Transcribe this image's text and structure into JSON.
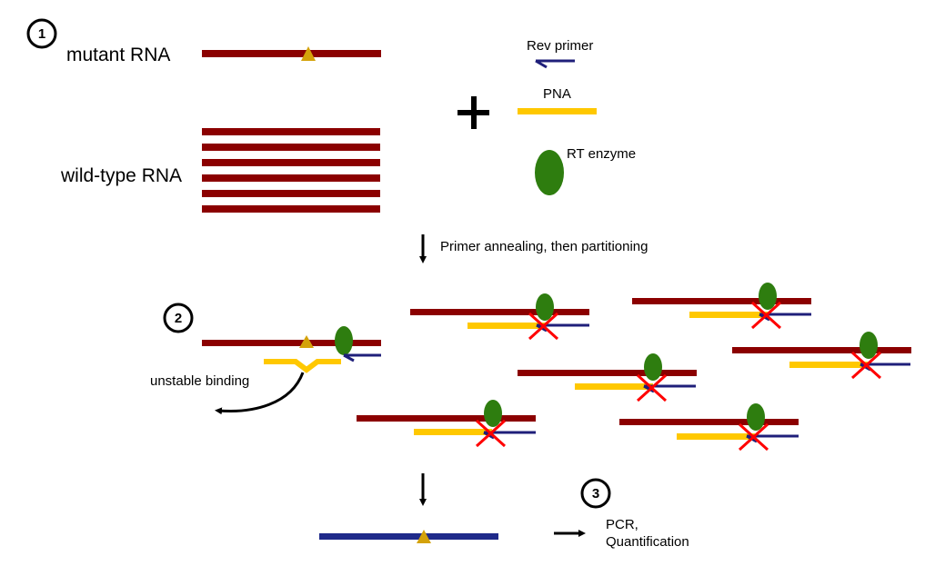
{
  "steps": {
    "s1": "1",
    "s2": "2",
    "s3": "3"
  },
  "labels": {
    "mutant_rna": "mutant RNA",
    "wild_type_rna": "wild-type RNA",
    "rev_primer": "Rev primer",
    "pna": "PNA",
    "rt_enzyme": "RT enzyme",
    "plus": "+",
    "annealing": "Primer annealing, then partitioning",
    "unstable": "unstable binding",
    "pcr": "PCR,",
    "quantification": "Quantification"
  },
  "colors": {
    "rna": "#8b0000",
    "pna": "#ffc800",
    "primer": "#1f1f7a",
    "enzyme": "#2e7d0f",
    "mutation": "#d4a20a",
    "block": "#ff0000",
    "cdna": "#1f2a8a"
  }
}
